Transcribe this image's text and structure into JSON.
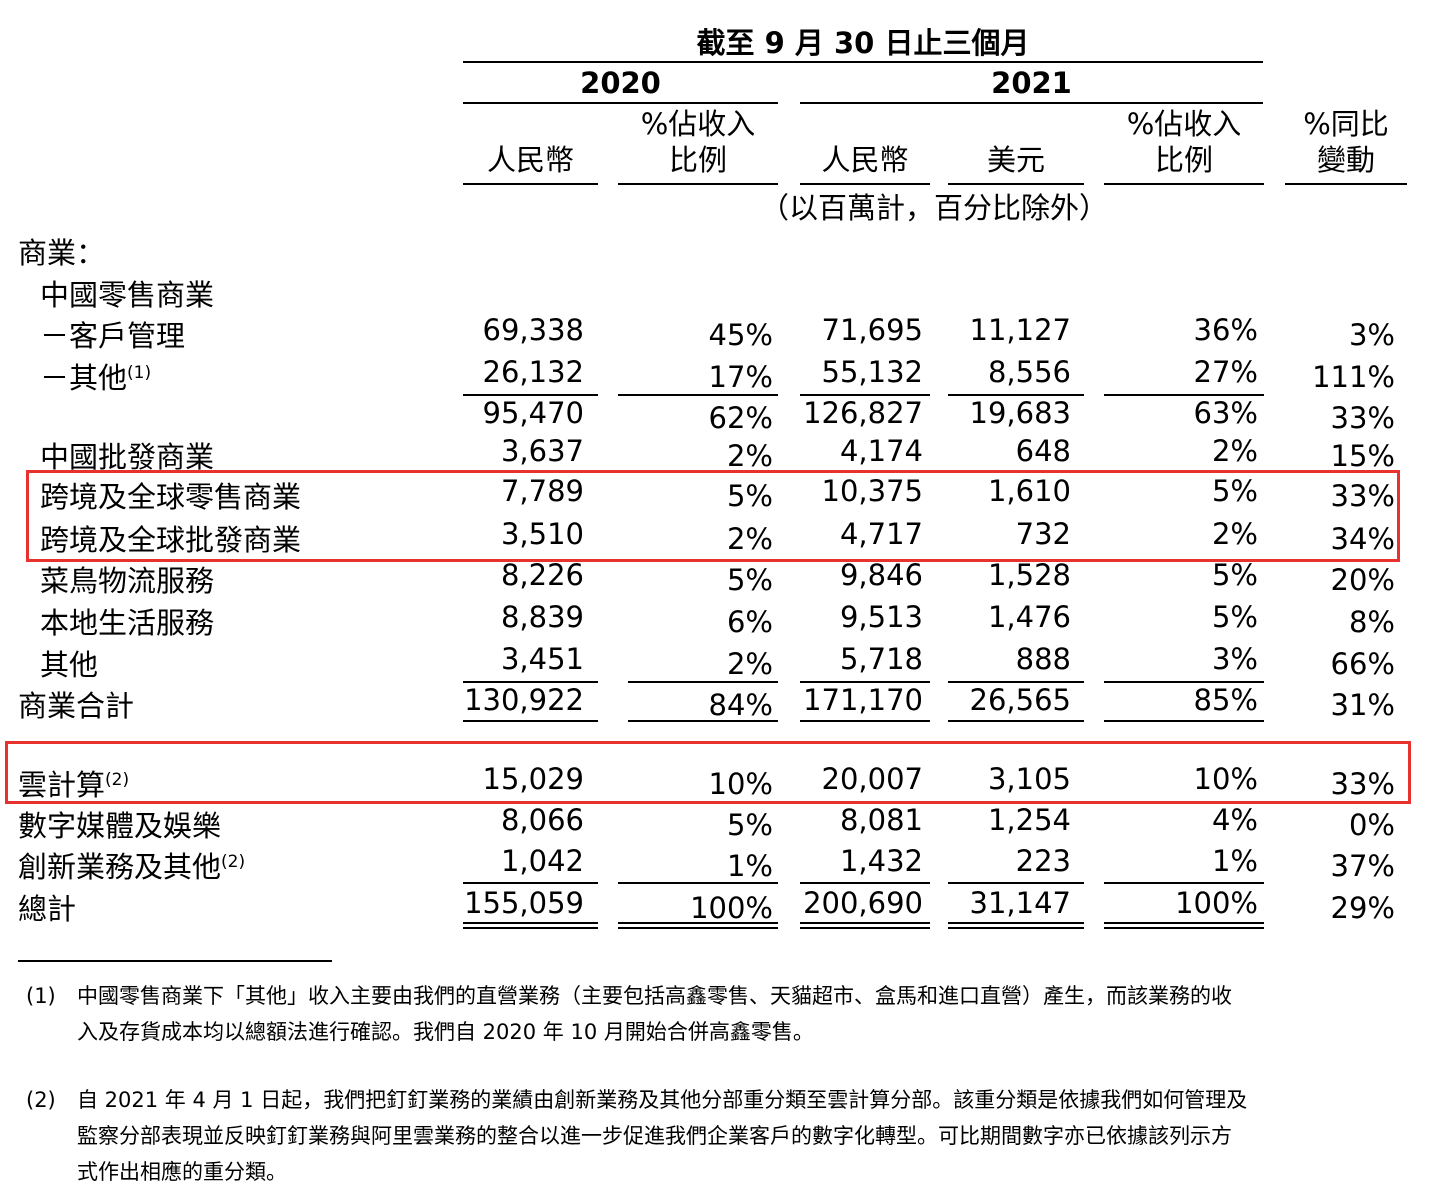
{
  "header": {
    "period": "截至 9 月 30 日止三個月",
    "year_2020": "2020",
    "year_2021": "2021",
    "cols": {
      "rmb_2020": "人民幣",
      "pct_2020_l1": "%佔收入",
      "pct_2020_l2": "比例",
      "rmb_2021": "人民幣",
      "usd_2021": "美元",
      "pct_2021_l1": "%佔收入",
      "pct_2021_l2": "比例",
      "yoy_l1": "%同比",
      "yoy_l2": "變動"
    },
    "units": "（以百萬計，百分比除外）"
  },
  "section_commerce": "商業：",
  "rows": [
    {
      "label": "中國零售商業",
      "sup": "",
      "v": [
        "",
        "",
        "",
        "",
        "",
        ""
      ]
    },
    {
      "label": "－客戶管理",
      "sup": "",
      "v": [
        "69,338",
        "45%",
        "71,695",
        "11,127",
        "36%",
        "3%"
      ]
    },
    {
      "label": "－其他",
      "sup": "(1)",
      "v": [
        "26,132",
        "17%",
        "55,132",
        "8,556",
        "27%",
        "111%"
      ]
    },
    {
      "label": "",
      "sup": "",
      "v": [
        "95,470",
        "62%",
        "126,827",
        "19,683",
        "63%",
        "33%"
      ]
    },
    {
      "label": "中國批發商業",
      "sup": "",
      "v": [
        "3,637",
        "2%",
        "4,174",
        "648",
        "2%",
        "15%"
      ]
    },
    {
      "label": "跨境及全球零售商業",
      "sup": "",
      "v": [
        "7,789",
        "5%",
        "10,375",
        "1,610",
        "5%",
        "33%"
      ]
    },
    {
      "label": "跨境及全球批發商業",
      "sup": "",
      "v": [
        "3,510",
        "2%",
        "4,717",
        "732",
        "2%",
        "34%"
      ]
    },
    {
      "label": "菜鳥物流服務",
      "sup": "",
      "v": [
        "8,226",
        "5%",
        "9,846",
        "1,528",
        "5%",
        "20%"
      ]
    },
    {
      "label": "本地生活服務",
      "sup": "",
      "v": [
        "8,839",
        "6%",
        "9,513",
        "1,476",
        "5%",
        "8%"
      ]
    },
    {
      "label": "其他",
      "sup": "",
      "v": [
        "3,451",
        "2%",
        "5,718",
        "888",
        "3%",
        "66%"
      ]
    },
    {
      "label": "商業合計",
      "sup": "",
      "v": [
        "130,922",
        "84%",
        "171,170",
        "26,565",
        "85%",
        "31%"
      ]
    },
    {
      "label": "雲計算",
      "sup": "(2)",
      "v": [
        "15,029",
        "10%",
        "20,007",
        "3,105",
        "10%",
        "33%"
      ]
    },
    {
      "label": "數字媒體及娛樂",
      "sup": "",
      "v": [
        "8,066",
        "5%",
        "8,081",
        "1,254",
        "4%",
        "0%"
      ]
    },
    {
      "label": "創新業務及其他",
      "sup": "(2)",
      "v": [
        "1,042",
        "1%",
        "1,432",
        "223",
        "1%",
        "37%"
      ]
    },
    {
      "label": "總計",
      "sup": "",
      "v": [
        "155,059",
        "100%",
        "200,690",
        "31,147",
        "100%",
        "29%"
      ]
    }
  ],
  "footnotes": [
    {
      "mark": "(1)",
      "lines": [
        "中國零售商業下「其他」收入主要由我們的直營業務（主要包括高鑫零售、天貓超市、盒馬和進口直營）產生，而該業務的收",
        "入及存貨成本均以總額法進行確認。我們自 2020 年 10 月開始合併高鑫零售。"
      ]
    },
    {
      "mark": "(2)",
      "lines": [
        "自 2021 年 4 月 1 日起，我們把釘釘業務的業績由創新業務及其他分部重分類至雲計算分部。該重分類是依據我們如何管理及",
        "監察分部表現並反映釘釘業務與阿里雲業務的整合以進一步促進我們企業客戶的數字化轉型。可比期間數字亦已依據該列示方",
        "式作出相應的重分類。"
      ]
    }
  ],
  "highlight_color": "#e8322e"
}
